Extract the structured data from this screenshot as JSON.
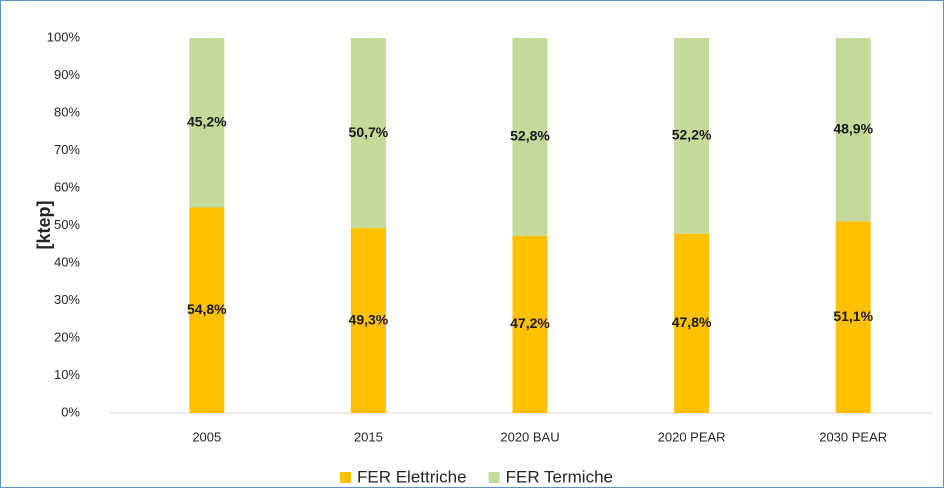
{
  "chart_data": {
    "type": "stacked_bar",
    "y_label": "[ktep]",
    "categories": [
      "2005",
      "2015",
      "2020 BAU",
      "2020 PEAR",
      "2030 PEAR"
    ],
    "series": [
      {
        "name": "FER Elettriche",
        "color": "#ffc000",
        "values": [
          54.8,
          49.3,
          47.2,
          47.8,
          51.1
        ],
        "value_labels": [
          "54,8%",
          "49,3%",
          "47,2%",
          "47,8%",
          "51,1%"
        ]
      },
      {
        "name": "FER Termiche",
        "color": "#c5d99b",
        "values": [
          45.2,
          50.7,
          52.8,
          52.2,
          48.9
        ],
        "value_labels": [
          "45,2%",
          "50,7%",
          "52,8%",
          "52,2%",
          "48,9%"
        ]
      }
    ],
    "ylim": [
      0,
      100
    ],
    "yticks": [
      {
        "value": 0,
        "label": "0%"
      },
      {
        "value": 10,
        "label": "10%"
      },
      {
        "value": 20,
        "label": "20%"
      },
      {
        "value": 30,
        "label": "30%"
      },
      {
        "value": 40,
        "label": "40%"
      },
      {
        "value": 50,
        "label": "50%"
      },
      {
        "value": 60,
        "label": "60%"
      },
      {
        "value": 70,
        "label": "70%"
      },
      {
        "value": 80,
        "label": "80%"
      },
      {
        "value": 90,
        "label": "90%"
      },
      {
        "value": 100,
        "label": "100%"
      }
    ],
    "legend": "bottom"
  }
}
